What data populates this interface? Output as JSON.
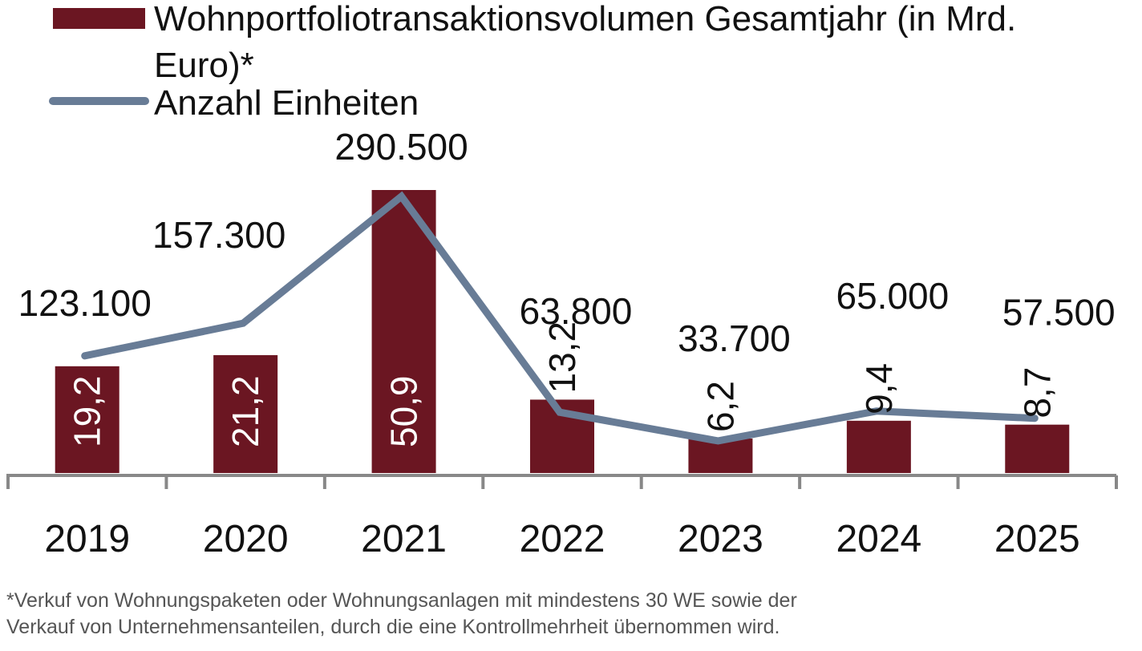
{
  "chart_data": {
    "type": "bar+line",
    "categories": [
      "2019",
      "2020",
      "2021",
      "2022",
      "2023",
      "2024",
      "2025"
    ],
    "series": [
      {
        "name": "Wohnportfoliotransaktionsvolumen Gesamtjahr (in Mrd. Euro)*",
        "type": "bar",
        "values": [
          19.2,
          21.2,
          50.9,
          13.2,
          6.2,
          9.4,
          8.7
        ],
        "labels": [
          "19,2",
          "21,2",
          "50,9",
          "13,2",
          "6,2",
          "9,4",
          "8,7"
        ]
      },
      {
        "name": "Anzahl Einheiten",
        "type": "line",
        "values": [
          123100,
          157300,
          290500,
          63800,
          33700,
          65000,
          57500
        ],
        "labels": [
          "123.100",
          "157.300",
          "290.500",
          "63.800",
          "33.700",
          "65.000",
          "57.500"
        ]
      }
    ],
    "legend": {
      "bar_label_line1": "Wohnportfoliotransaktionsvolumen Gesamtjahr (in Mrd.",
      "bar_label_line2": "Euro)*",
      "line_label": "Anzahl Einheiten",
      "position": "top-left"
    },
    "bar_ylim": [
      0,
      54
    ],
    "line_ylim": [
      0,
      330000
    ],
    "colors": {
      "bar": "#6b1622",
      "line": "#687c96",
      "axis": "#888888"
    }
  },
  "footnote": {
    "line1": "*Verkuf von Wohnungspaketen oder Wohnungsanlagen mit mindestens 30 WE sowie der",
    "line2": "Verkauf von Unternehmensanteilen, durch die eine Kontrollmehrheit übernommen wird."
  }
}
